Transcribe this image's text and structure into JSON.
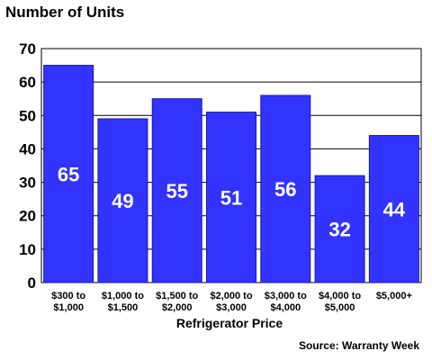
{
  "chart_data": {
    "type": "bar",
    "title": "Number of Units",
    "xlabel": "Refrigerator Price",
    "ylabel": "",
    "source": "Source: Warranty Week",
    "categories": [
      [
        "$300 to",
        "$1,000"
      ],
      [
        "$1,000 to",
        "$1,500"
      ],
      [
        "$1,500 to",
        "$2,000"
      ],
      [
        "$2,000 to",
        "$3,000"
      ],
      [
        "$3,000 to",
        "$4,000"
      ],
      [
        "$4,000 to",
        "$5,000"
      ],
      [
        "$5,000+"
      ]
    ],
    "values": [
      65,
      49,
      55,
      51,
      56,
      32,
      44
    ],
    "data_labels": [
      "65",
      "49",
      "55",
      "51",
      "56",
      "32",
      "44"
    ],
    "yticks": [
      0,
      10,
      20,
      30,
      40,
      50,
      60,
      70
    ],
    "ylim": [
      0,
      70
    ],
    "grid": true,
    "bar_color": "#3333ff",
    "bar_edge_color": "#1a1a99"
  }
}
